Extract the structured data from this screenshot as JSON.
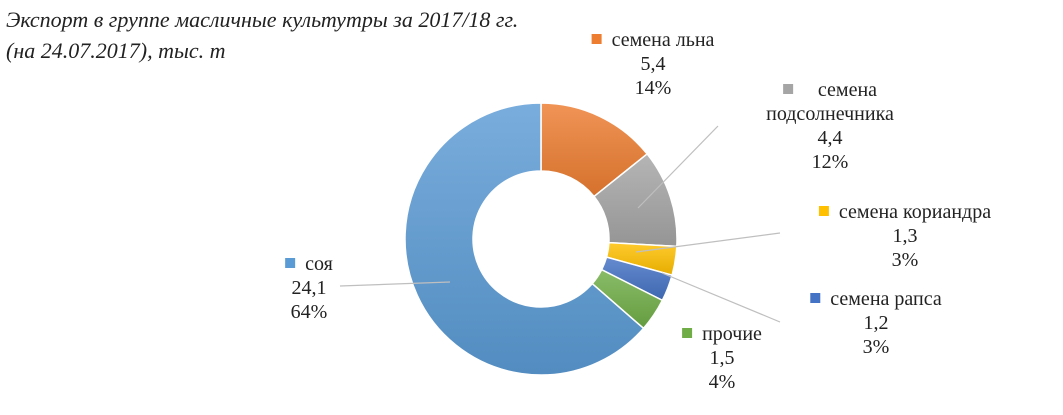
{
  "chart_data": {
    "type": "pie",
    "title": "Экспорт в группе масличные культутры за 2017/18 гг. (на 24.07.2017), тыс. т",
    "title_lines": [
      "Экспорт в группе масличные культутры за 2017/18 гг.",
      "(на 24.07.2017), тыс. т"
    ],
    "donut": true,
    "legend": "none",
    "categories": [
      "семена льна",
      "семена подсолнечника",
      "семена кориандра",
      "семена рапса",
      "прочие",
      "соя"
    ],
    "values": [
      5.4,
      4.4,
      1.3,
      1.2,
      1.5,
      24.1
    ],
    "value_labels": [
      "5,4",
      "4,4",
      "1,3",
      "1,2",
      "1,5",
      "24,1"
    ],
    "percent_labels": [
      "14%",
      "12%",
      "3%",
      "3%",
      "4%",
      "64%"
    ],
    "colors": [
      "#ED7D31",
      "#A5A5A5",
      "#FFC000",
      "#4472C4",
      "#70AD47",
      "#5B9BD5"
    ]
  }
}
